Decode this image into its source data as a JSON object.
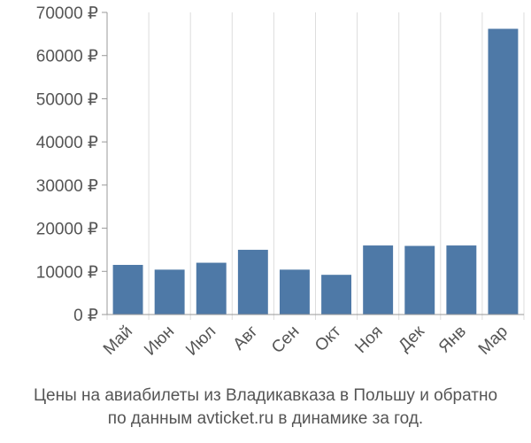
{
  "caption": {
    "line1": "Цены на авиабилеты из Владикавказа в Польшу и обратно",
    "line2": "по данным avticket.ru в динамике за год."
  },
  "chart_data": {
    "type": "bar",
    "title": "",
    "xlabel": "",
    "ylabel": "",
    "categories": [
      "Май",
      "Июн",
      "Июл",
      "Авг",
      "Сен",
      "Окт",
      "Ноя",
      "Дек",
      "Янв",
      "Мар"
    ],
    "values": [
      11500,
      10400,
      12000,
      15000,
      10400,
      9200,
      16000,
      15900,
      16000,
      66200
    ],
    "ylim": [
      0,
      70000
    ],
    "yticks": [
      0,
      10000,
      20000,
      30000,
      40000,
      50000,
      60000,
      70000
    ],
    "ytick_labels": [
      "0 ₽",
      "10000 ₽",
      "20000 ₽",
      "30000 ₽",
      "40000 ₽",
      "50000 ₽",
      "60000 ₽",
      "70000 ₽"
    ],
    "grid": "vertical",
    "bar_color": "#4e79a7",
    "grid_color": "#dddddd",
    "axis_color": "#999999"
  }
}
